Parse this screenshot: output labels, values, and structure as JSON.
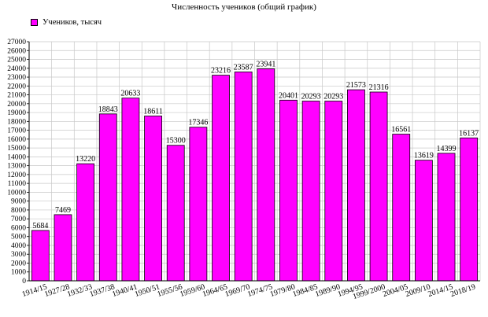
{
  "chart_data": {
    "type": "bar",
    "title": "Численность учеников (общий график)",
    "series": [
      {
        "name": "Учеников, тысяч",
        "color": "#ff00ff",
        "values": [
          5684,
          7469,
          13220,
          18843,
          20633,
          18611,
          15300,
          17346,
          23216,
          23587,
          23941,
          20401,
          20293,
          20293,
          21573,
          21316,
          16561,
          13619,
          14399,
          16137
        ]
      }
    ],
    "categories": [
      "1914/15",
      "1927/28",
      "1932/33",
      "1937/38",
      "1940/41",
      "1950/51",
      "1955/56",
      "1959/60",
      "1964/65",
      "1969/70",
      "1974/75",
      "1979/80",
      "1984/85",
      "1989/90",
      "1994/95",
      "1999/2000",
      "2004/05",
      "2009/10",
      "2014/15",
      "2018/19"
    ],
    "ylim": [
      0,
      27000
    ],
    "ytick_step": 1000,
    "grid": true,
    "legend_position": "top-left",
    "xlabel": "",
    "ylabel": ""
  }
}
